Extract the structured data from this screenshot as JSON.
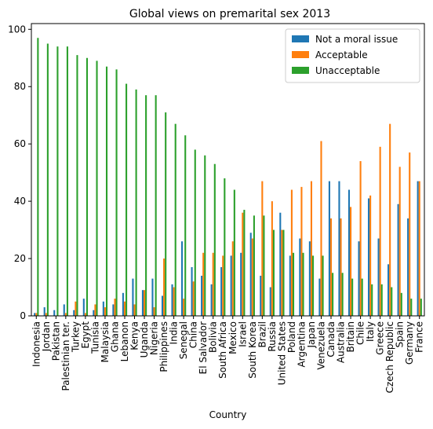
{
  "chart_data": {
    "type": "bar",
    "title": "Global views on premarital sex 2013",
    "xlabel": "Country",
    "ylabel": "",
    "ylim": [
      0,
      102
    ],
    "yticks": [
      0,
      20,
      40,
      60,
      80,
      100
    ],
    "grid": false,
    "legend_position": "top-right",
    "categories": [
      "Indonesia",
      "Jordan",
      "Pakistan",
      "Palestinian ter.",
      "Turkey",
      "Egypt",
      "Tunisia",
      "Malaysia",
      "Ghana",
      "Lebanon",
      "Kenya",
      "Uganda",
      "Nigeria",
      "Philippines",
      "India",
      "Senegal",
      "China",
      "El Salvador",
      "Bolivia",
      "South Africa",
      "Mexico",
      "Israel",
      "South Korea",
      "Brazil",
      "Russia",
      "United States",
      "Poland",
      "Argentina",
      "Japan",
      "Venezuela",
      "Canada",
      "Australia",
      "Britain",
      "Chile",
      "Italy",
      "Greece",
      "Czech Republic",
      "Spain",
      "Germany",
      "France"
    ],
    "series": [
      {
        "name": "Not a moral issue",
        "color": "#1f77b4",
        "values": [
          1,
          3,
          2,
          4,
          2,
          6,
          2,
          5,
          4,
          8,
          13,
          9,
          13,
          7,
          11,
          26,
          17,
          14,
          11,
          17,
          21,
          22,
          29,
          14,
          10,
          36,
          21,
          27,
          26,
          13,
          47,
          47,
          44,
          26,
          41,
          27,
          18,
          39,
          34,
          47
        ]
      },
      {
        "name": "Acceptable",
        "color": "#ff7f0e",
        "values": [
          1,
          1,
          0,
          1,
          5,
          1,
          4,
          3,
          6,
          5,
          4,
          9,
          3,
          20,
          10,
          6,
          12,
          22,
          22,
          21,
          26,
          36,
          27,
          47,
          40,
          30,
          44,
          45,
          47,
          61,
          34,
          34,
          38,
          54,
          42,
          59,
          67,
          52,
          57,
          47
        ]
      },
      {
        "name": "Unacceptable",
        "color": "#2ca02c",
        "values": [
          97,
          95,
          94,
          94,
          91,
          90,
          89,
          87,
          86,
          81,
          79,
          77,
          77,
          71,
          67,
          63,
          58,
          56,
          53,
          48,
          44,
          37,
          35,
          35,
          30,
          30,
          22,
          22,
          21,
          21,
          15,
          15,
          13,
          13,
          11,
          11,
          10,
          8,
          6,
          6
        ]
      }
    ]
  }
}
